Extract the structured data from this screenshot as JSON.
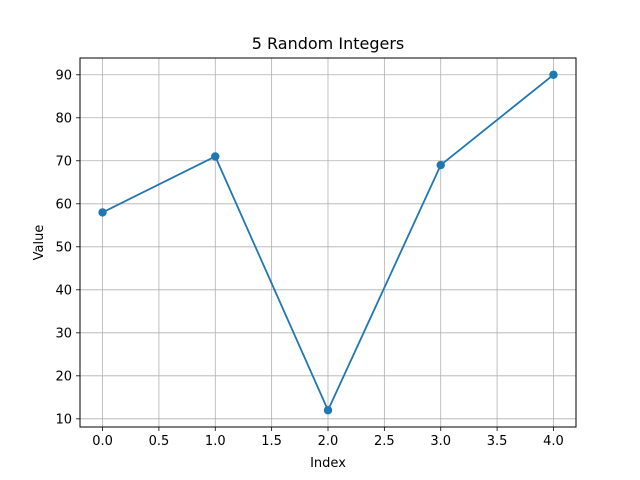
{
  "chart_data": {
    "type": "line",
    "title": "5 Random Integers",
    "xlabel": "Index",
    "ylabel": "Value",
    "x": [
      0,
      1,
      2,
      3,
      4
    ],
    "series": [
      {
        "values": [
          58,
          71,
          12,
          69,
          90
        ],
        "color": "#1f77b4",
        "marker": "circle"
      }
    ],
    "xlim": [
      -0.2,
      4.2
    ],
    "ylim": [
      8.1,
      93.9
    ],
    "xticks": [
      0.0,
      0.5,
      1.0,
      1.5,
      2.0,
      2.5,
      3.0,
      3.5,
      4.0
    ],
    "xtick_labels": [
      "0.0",
      "0.5",
      "1.0",
      "1.5",
      "2.0",
      "2.5",
      "3.0",
      "3.5",
      "4.0"
    ],
    "yticks": [
      10,
      20,
      30,
      40,
      50,
      60,
      70,
      80,
      90
    ],
    "ytick_labels": [
      "10",
      "20",
      "30",
      "40",
      "50",
      "60",
      "70",
      "80",
      "90"
    ],
    "grid": true
  }
}
